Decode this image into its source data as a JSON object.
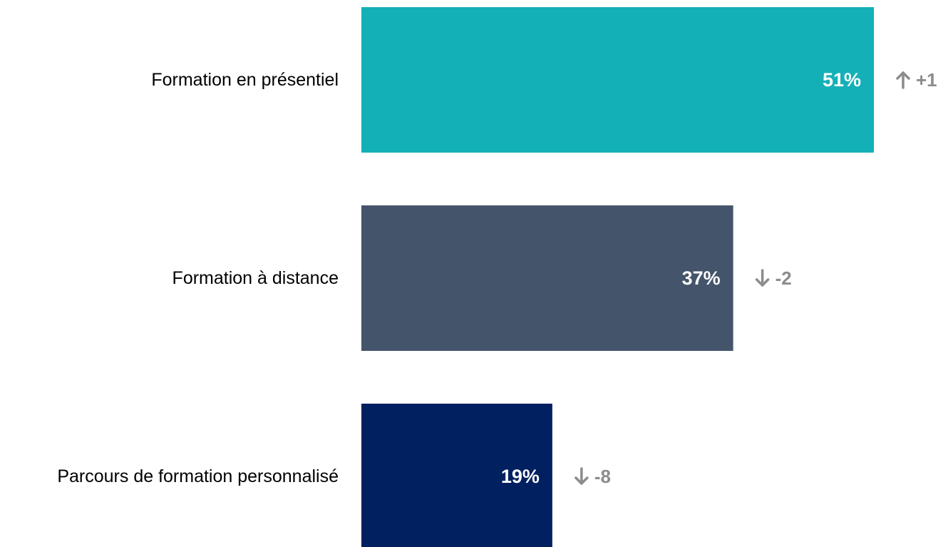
{
  "chart_data": {
    "type": "bar",
    "orientation": "horizontal",
    "title": "",
    "xlabel": "",
    "ylabel": "",
    "grid": false,
    "xlim": [
      0,
      51
    ],
    "value_suffix": "%",
    "categories": [
      "Formation en présentiel",
      "Formation à distance",
      "Parcours de formation personnalisé"
    ],
    "values": [
      51,
      37,
      19
    ],
    "value_labels": [
      "51%",
      "37%",
      "19%"
    ],
    "colors": [
      "#14B0B8",
      "#44546A",
      "#002060"
    ],
    "changes": [
      {
        "direction": "up",
        "icon": "arrow-up-icon",
        "text": "+1"
      },
      {
        "direction": "down",
        "icon": "arrow-down-icon",
        "text": "-2"
      },
      {
        "direction": "down",
        "icon": "arrow-down-icon",
        "text": "-8"
      }
    ],
    "change_color": "#8C8C8C"
  }
}
